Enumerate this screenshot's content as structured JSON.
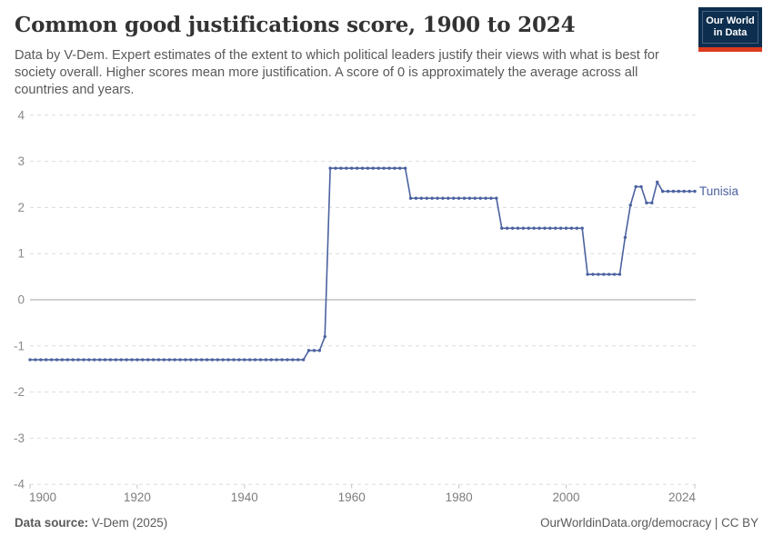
{
  "header": {
    "title": "Common good justifications score, 1900 to 2024",
    "subtitle": "Data by V-Dem. Expert estimates of the extent to which political leaders justify their views with what is best for society overall. Higher scores mean more justification. A score of 0 is approximately the average across all countries and years.",
    "logo": {
      "line1": "Our World",
      "line2": "in Data"
    }
  },
  "footer": {
    "source_label": "Data source:",
    "source_value": " V-Dem (2025)",
    "link_text": "OurWorldinData.org/democracy",
    "license_suffix": " | CC BY"
  },
  "colors": {
    "line": "#4b62a0",
    "logo_navy": "#0d2e4e",
    "logo_red": "#dc3b1e",
    "gridline": "#dcdcdc",
    "zero_line": "#a3a3a3",
    "axis_label": "#7d7d7d"
  },
  "chart_data": {
    "type": "line",
    "title": "Common good justifications score, 1900 to 2024",
    "entity": "Tunisia",
    "start_year": 1900,
    "end_year": 2024,
    "xlabel": "",
    "ylabel": "",
    "ylim": [
      -4,
      4
    ],
    "yticks": [
      4,
      3,
      2,
      1,
      0,
      -1,
      -2,
      -3,
      -4
    ],
    "xticks": [
      1900,
      1920,
      1940,
      1960,
      1980,
      2000,
      2024
    ],
    "grid": "dashed horizontal gridlines, solid zero line, dashed bottom axis",
    "legend_position": "right of last point",
    "line_color": "#4b62a0",
    "values": [
      -1.3,
      -1.3,
      -1.3,
      -1.3,
      -1.3,
      -1.3,
      -1.3,
      -1.3,
      -1.3,
      -1.3,
      -1.3,
      -1.3,
      -1.3,
      -1.3,
      -1.3,
      -1.3,
      -1.3,
      -1.3,
      -1.3,
      -1.3,
      -1.3,
      -1.3,
      -1.3,
      -1.3,
      -1.3,
      -1.3,
      -1.3,
      -1.3,
      -1.3,
      -1.3,
      -1.3,
      -1.3,
      -1.3,
      -1.3,
      -1.3,
      -1.3,
      -1.3,
      -1.3,
      -1.3,
      -1.3,
      -1.3,
      -1.3,
      -1.3,
      -1.3,
      -1.3,
      -1.3,
      -1.3,
      -1.3,
      -1.3,
      -1.3,
      -1.3,
      -1.3,
      -1.1,
      -1.1,
      -1.1,
      -0.8,
      2.85,
      2.85,
      2.85,
      2.85,
      2.85,
      2.85,
      2.85,
      2.85,
      2.85,
      2.85,
      2.85,
      2.85,
      2.85,
      2.85,
      2.85,
      2.2,
      2.2,
      2.2,
      2.2,
      2.2,
      2.2,
      2.2,
      2.2,
      2.2,
      2.2,
      2.2,
      2.2,
      2.2,
      2.2,
      2.2,
      2.2,
      2.2,
      1.55,
      1.55,
      1.55,
      1.55,
      1.55,
      1.55,
      1.55,
      1.55,
      1.55,
      1.55,
      1.55,
      1.55,
      1.55,
      1.55,
      1.55,
      1.55,
      0.55,
      0.55,
      0.55,
      0.55,
      0.55,
      0.55,
      0.55,
      1.35,
      2.05,
      2.45,
      2.45,
      2.1,
      2.1,
      2.55,
      2.35,
      2.35,
      2.35,
      2.35,
      2.35,
      2.35,
      2.35
    ]
  }
}
